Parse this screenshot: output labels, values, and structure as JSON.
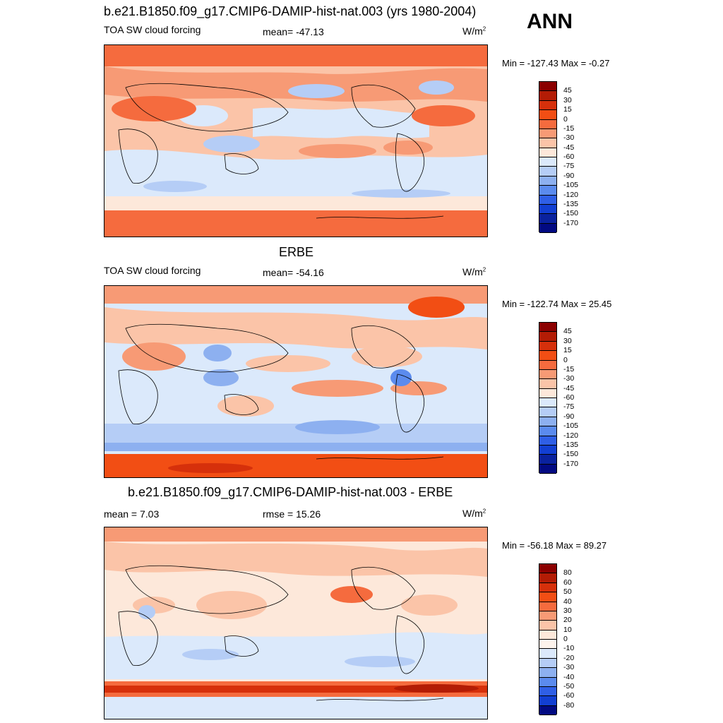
{
  "season": "ANN",
  "panels": [
    {
      "title": "b.e21.B1850.f09_g17.CMIP6-DAMIP-hist-nat.003 (yrs 1980-2004)",
      "left_label": "TOA SW cloud forcing",
      "center_label": "mean= -47.13",
      "unit_base": "W/m",
      "unit_sup": "2",
      "minmax": "Min = -127.43 Max =  -0.27",
      "levels": [
        "45",
        "30",
        "15",
        "0",
        "-15",
        "-30",
        "-45",
        "-60",
        "-75",
        "-90",
        "-105",
        "-120",
        "-135",
        "-150",
        "-170"
      ],
      "colors": [
        "#8b0000",
        "#b31c05",
        "#d6300b",
        "#f24e14",
        "#f56b3e",
        "#f79a75",
        "#fbc4a8",
        "#fde8da",
        "#dbe9fb",
        "#b5cdf6",
        "#8db0f0",
        "#5b8bee",
        "#2f5fe6",
        "#123fd2",
        "#0a229e",
        "#020a82"
      ]
    },
    {
      "title": "ERBE",
      "left_label": "TOA SW cloud forcing",
      "center_label": "mean= -54.16",
      "unit_base": "W/m",
      "unit_sup": "2",
      "minmax": "Min = -122.74 Max =  25.45",
      "levels": [
        "45",
        "30",
        "15",
        "0",
        "-15",
        "-30",
        "-45",
        "-60",
        "-75",
        "-90",
        "-105",
        "-120",
        "-135",
        "-150",
        "-170"
      ],
      "colors": [
        "#8b0000",
        "#b31c05",
        "#d6300b",
        "#f24e14",
        "#f56b3e",
        "#f79a75",
        "#fbc4a8",
        "#fde8da",
        "#dbe9fb",
        "#b5cdf6",
        "#8db0f0",
        "#5b8bee",
        "#2f5fe6",
        "#123fd2",
        "#0a229e",
        "#020a82"
      ]
    },
    {
      "title": "b.e21.B1850.f09_g17.CMIP6-DAMIP-hist-nat.003 - ERBE",
      "left_label": "mean =   7.03",
      "center_label": "rmse =  15.26",
      "unit_base": "W/m",
      "unit_sup": "2",
      "minmax": "Min = -56.18 Max =  89.27",
      "levels": [
        "80",
        "60",
        "50",
        "40",
        "30",
        "20",
        "10",
        "0",
        "-10",
        "-20",
        "-30",
        "-40",
        "-50",
        "-60",
        "-80"
      ],
      "colors": [
        "#8b0000",
        "#b31c05",
        "#d6300b",
        "#f24e14",
        "#f56b3e",
        "#f79a75",
        "#fbc4a8",
        "#fde8da",
        "#fdf3ec",
        "#dbe9fb",
        "#b5cdf6",
        "#8db0f0",
        "#5b8bee",
        "#2f5fe6",
        "#123fd2",
        "#020a82"
      ]
    }
  ]
}
